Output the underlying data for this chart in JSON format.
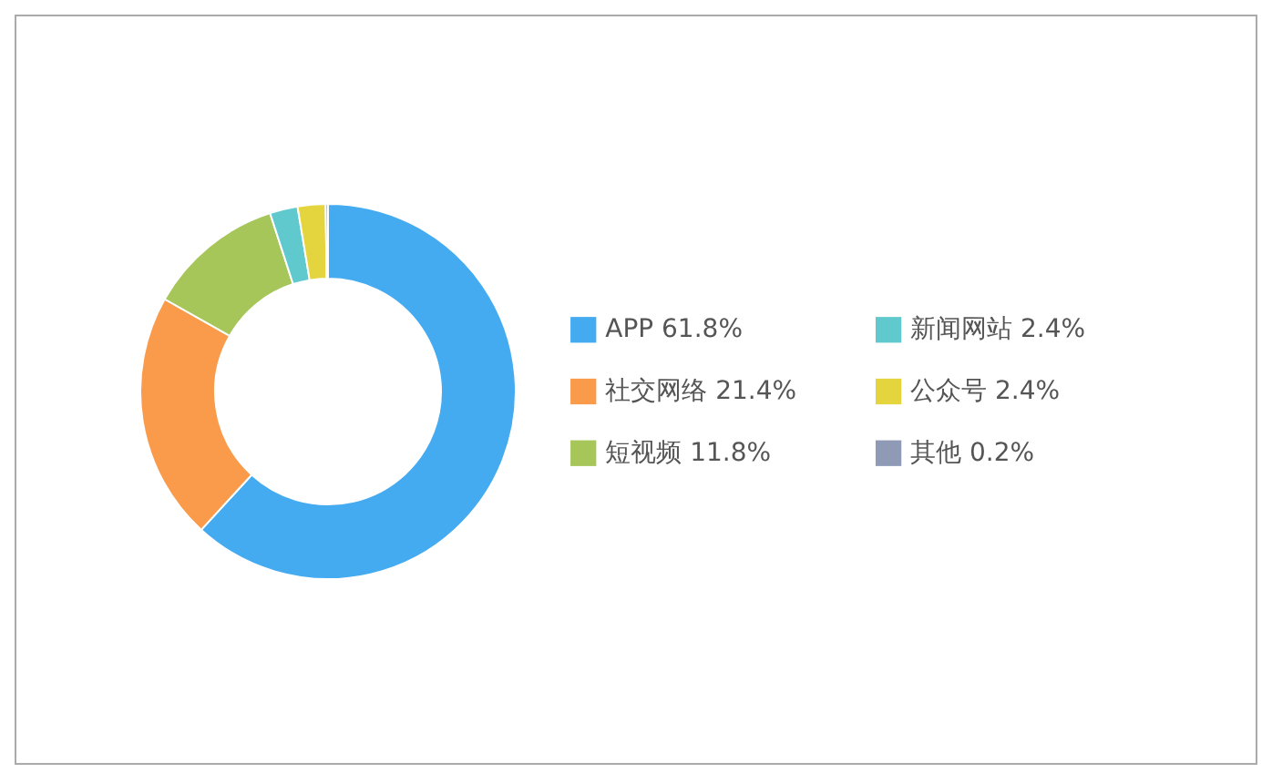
{
  "chart_data": {
    "type": "donut",
    "categories": [
      "APP",
      "社交网络",
      "短视频",
      "新闻网站",
      "公众号",
      "其他"
    ],
    "values": [
      61.8,
      21.4,
      11.8,
      2.4,
      2.4,
      0.2
    ],
    "colors": [
      "#45abf1",
      "#f99b4a",
      "#a6c65a",
      "#5fc9cd",
      "#e4d43e",
      "#8f9bb6"
    ],
    "value_labels": [
      "61.8%",
      "21.4%",
      "11.8%",
      "2.4%",
      "2.4%",
      "0.2%"
    ],
    "legend": "right"
  }
}
